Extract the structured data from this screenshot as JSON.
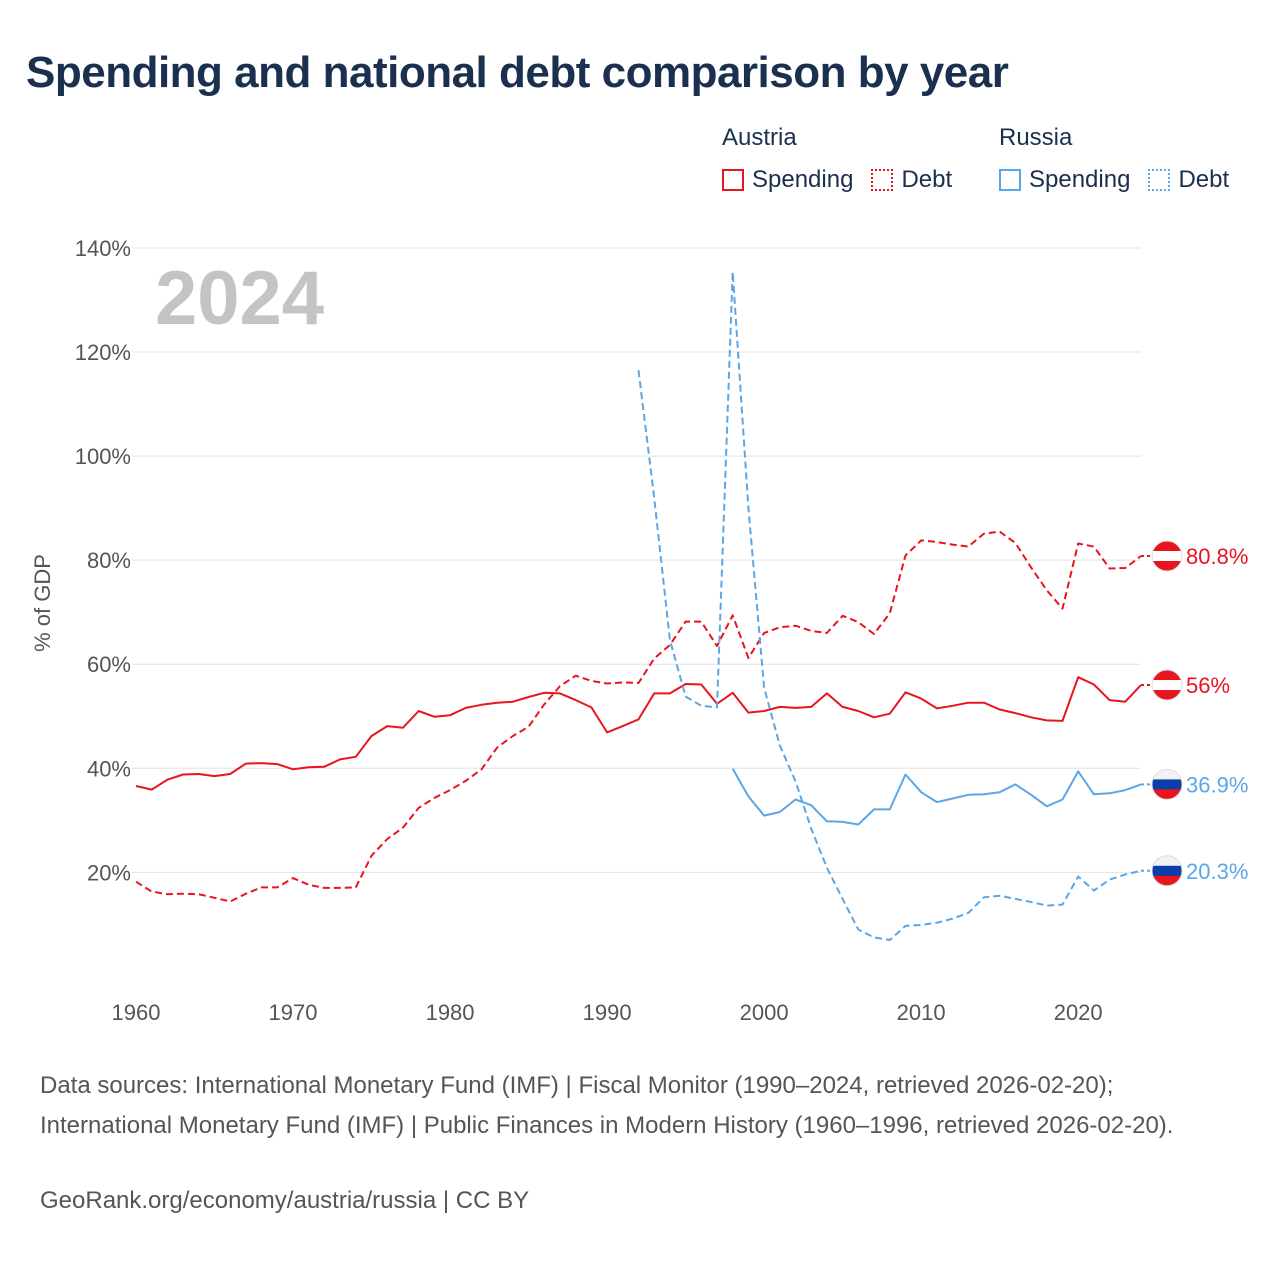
{
  "title": "Spending and national debt comparison by year",
  "legend": {
    "groups": [
      {
        "country": "Austria",
        "color": "#e8141e",
        "items": [
          {
            "label": "Spending",
            "style": "solid"
          },
          {
            "label": "Debt",
            "style": "dotted"
          }
        ]
      },
      {
        "country": "Russia",
        "color": "#5aa6e6",
        "items": [
          {
            "label": "Spending",
            "style": "solid"
          },
          {
            "label": "Debt",
            "style": "dotted"
          }
        ]
      }
    ]
  },
  "footer": {
    "sources": "Data sources: International Monetary Fund (IMF) | Fiscal Monitor (1990–2024, retrieved 2026-02-20); International Monetary Fund (IMF) | Public Finances in Modern History (1960–1996, retrieved 2026-02-20).",
    "credit": "GeoRank.org/economy/austria/russia | CC BY"
  },
  "chart_data": {
    "type": "line",
    "title": "Spending and national debt comparison by year",
    "watermark_year": "2024",
    "ylabel": "% of GDP",
    "xlabel": "",
    "xlim": [
      1960,
      2024
    ],
    "ylim": [
      -3,
      140
    ],
    "x_ticks": [
      1960,
      1970,
      1980,
      1990,
      2000,
      2010,
      2020
    ],
    "y_ticks": [
      20,
      40,
      60,
      80,
      100,
      120,
      140
    ],
    "y_tick_labels": [
      "20%",
      "40%",
      "60%",
      "80%",
      "100%",
      "120%",
      "140%"
    ],
    "grid": true,
    "series": [
      {
        "name": "Austria Debt",
        "country": "Austria",
        "flag": "austria",
        "color": "#e8141e",
        "dash": true,
        "end_label": "80.8%",
        "x": [
          1960,
          1961,
          1962,
          1963,
          1964,
          1965,
          1966,
          1967,
          1968,
          1969,
          1970,
          1971,
          1972,
          1973,
          1974,
          1975,
          1976,
          1977,
          1978,
          1979,
          1980,
          1981,
          1982,
          1983,
          1984,
          1985,
          1986,
          1987,
          1988,
          1989,
          1990,
          1991,
          1992,
          1993,
          1994,
          1995,
          1996,
          1997,
          1998,
          1999,
          2000,
          2001,
          2002,
          2003,
          2004,
          2005,
          2006,
          2007,
          2008,
          2009,
          2010,
          2011,
          2012,
          2013,
          2014,
          2015,
          2016,
          2017,
          2018,
          2019,
          2020,
          2021,
          2022,
          2023,
          2024
        ],
        "values": [
          18.2,
          16.3,
          15.8,
          15.9,
          15.8,
          15.1,
          14.4,
          15.9,
          17.1,
          17.1,
          18.9,
          17.6,
          17.0,
          17.0,
          17.1,
          23.2,
          26.4,
          28.6,
          32.4,
          34.3,
          35.8,
          37.6,
          39.8,
          44.0,
          46.2,
          48.0,
          52.3,
          55.8,
          57.8,
          56.8,
          56.3,
          56.5,
          56.4,
          61.1,
          63.7,
          68.2,
          68.2,
          63.5,
          69.4,
          61.2,
          66.0,
          67.1,
          67.4,
          66.4,
          66.0,
          69.3,
          68.1,
          65.8,
          69.8,
          80.9,
          83.8,
          83.5,
          83.0,
          82.6,
          85.1,
          85.5,
          83.3,
          78.6,
          74.2,
          70.7,
          83.2,
          82.6,
          78.4,
          78.5,
          80.8
        ]
      },
      {
        "name": "Austria Spending",
        "country": "Austria",
        "flag": "austria",
        "color": "#e8141e",
        "dash": false,
        "end_label": "56%",
        "x": [
          1960,
          1961,
          1962,
          1963,
          1964,
          1965,
          1966,
          1967,
          1968,
          1969,
          1970,
          1971,
          1972,
          1973,
          1974,
          1975,
          1976,
          1977,
          1978,
          1979,
          1980,
          1981,
          1982,
          1983,
          1984,
          1985,
          1986,
          1987,
          1988,
          1989,
          1990,
          1991,
          1992,
          1993,
          1994,
          1995,
          1996,
          1997,
          1998,
          1999,
          2000,
          2001,
          2002,
          2003,
          2004,
          2005,
          2006,
          2007,
          2008,
          2009,
          2010,
          2011,
          2012,
          2013,
          2014,
          2015,
          2016,
          2017,
          2018,
          2019,
          2020,
          2021,
          2022,
          2023,
          2024
        ],
        "values": [
          36.6,
          35.9,
          37.8,
          38.8,
          38.9,
          38.5,
          38.9,
          40.9,
          41.0,
          40.8,
          39.8,
          40.2,
          40.3,
          41.7,
          42.2,
          46.2,
          48.1,
          47.8,
          51.0,
          49.9,
          50.2,
          51.6,
          52.2,
          52.6,
          52.8,
          53.7,
          54.5,
          54.4,
          53.1,
          51.7,
          46.9,
          48.1,
          49.4,
          54.4,
          54.4,
          56.2,
          56.1,
          52.4,
          54.5,
          50.7,
          51.0,
          51.8,
          51.6,
          51.8,
          54.4,
          51.8,
          51.0,
          49.8,
          50.5,
          54.6,
          53.4,
          51.5,
          52.0,
          52.6,
          52.6,
          51.3,
          50.6,
          49.8,
          49.2,
          49.1,
          57.5,
          56.1,
          53.1,
          52.8,
          56.0
        ]
      },
      {
        "name": "Russia Spending",
        "country": "Russia",
        "flag": "russia",
        "color": "#5aa6e6",
        "dash": false,
        "end_label": "36.9%",
        "x": [
          1998,
          1999,
          2000,
          2001,
          2002,
          2003,
          2004,
          2005,
          2006,
          2007,
          2008,
          2009,
          2010,
          2011,
          2012,
          2013,
          2014,
          2015,
          2016,
          2017,
          2018,
          2019,
          2020,
          2021,
          2022,
          2023,
          2024
        ],
        "values": [
          39.9,
          34.6,
          30.9,
          31.6,
          34.0,
          32.9,
          29.8,
          29.7,
          29.2,
          32.1,
          32.1,
          38.8,
          35.4,
          33.5,
          34.2,
          34.9,
          35.0,
          35.4,
          36.9,
          34.9,
          32.7,
          34.0,
          39.4,
          35.0,
          35.2,
          35.8,
          36.9
        ]
      },
      {
        "name": "Russia Debt",
        "country": "Russia",
        "flag": "russia",
        "color": "#5aa6e6",
        "dash": true,
        "end_label": "20.3%",
        "x": [
          1992,
          1993,
          1994,
          1995,
          1996,
          1997,
          1998,
          1999,
          2000,
          2001,
          2002,
          2003,
          2004,
          2005,
          2006,
          2007,
          2008,
          2009,
          2010,
          2011,
          2012,
          2013,
          2014,
          2015,
          2016,
          2017,
          2018,
          2019,
          2020,
          2021,
          2022,
          2023,
          2024
        ],
        "values": [
          116.5,
          92.0,
          64.7,
          53.8,
          52.0,
          51.7,
          135.4,
          90.0,
          55.5,
          44.4,
          37.5,
          28.4,
          20.9,
          14.9,
          9.0,
          7.5,
          7.0,
          9.7,
          9.9,
          10.3,
          11.1,
          12.2,
          15.2,
          15.5,
          14.9,
          14.3,
          13.6,
          13.8,
          19.2,
          16.5,
          18.6,
          19.6,
          20.3
        ]
      }
    ]
  }
}
